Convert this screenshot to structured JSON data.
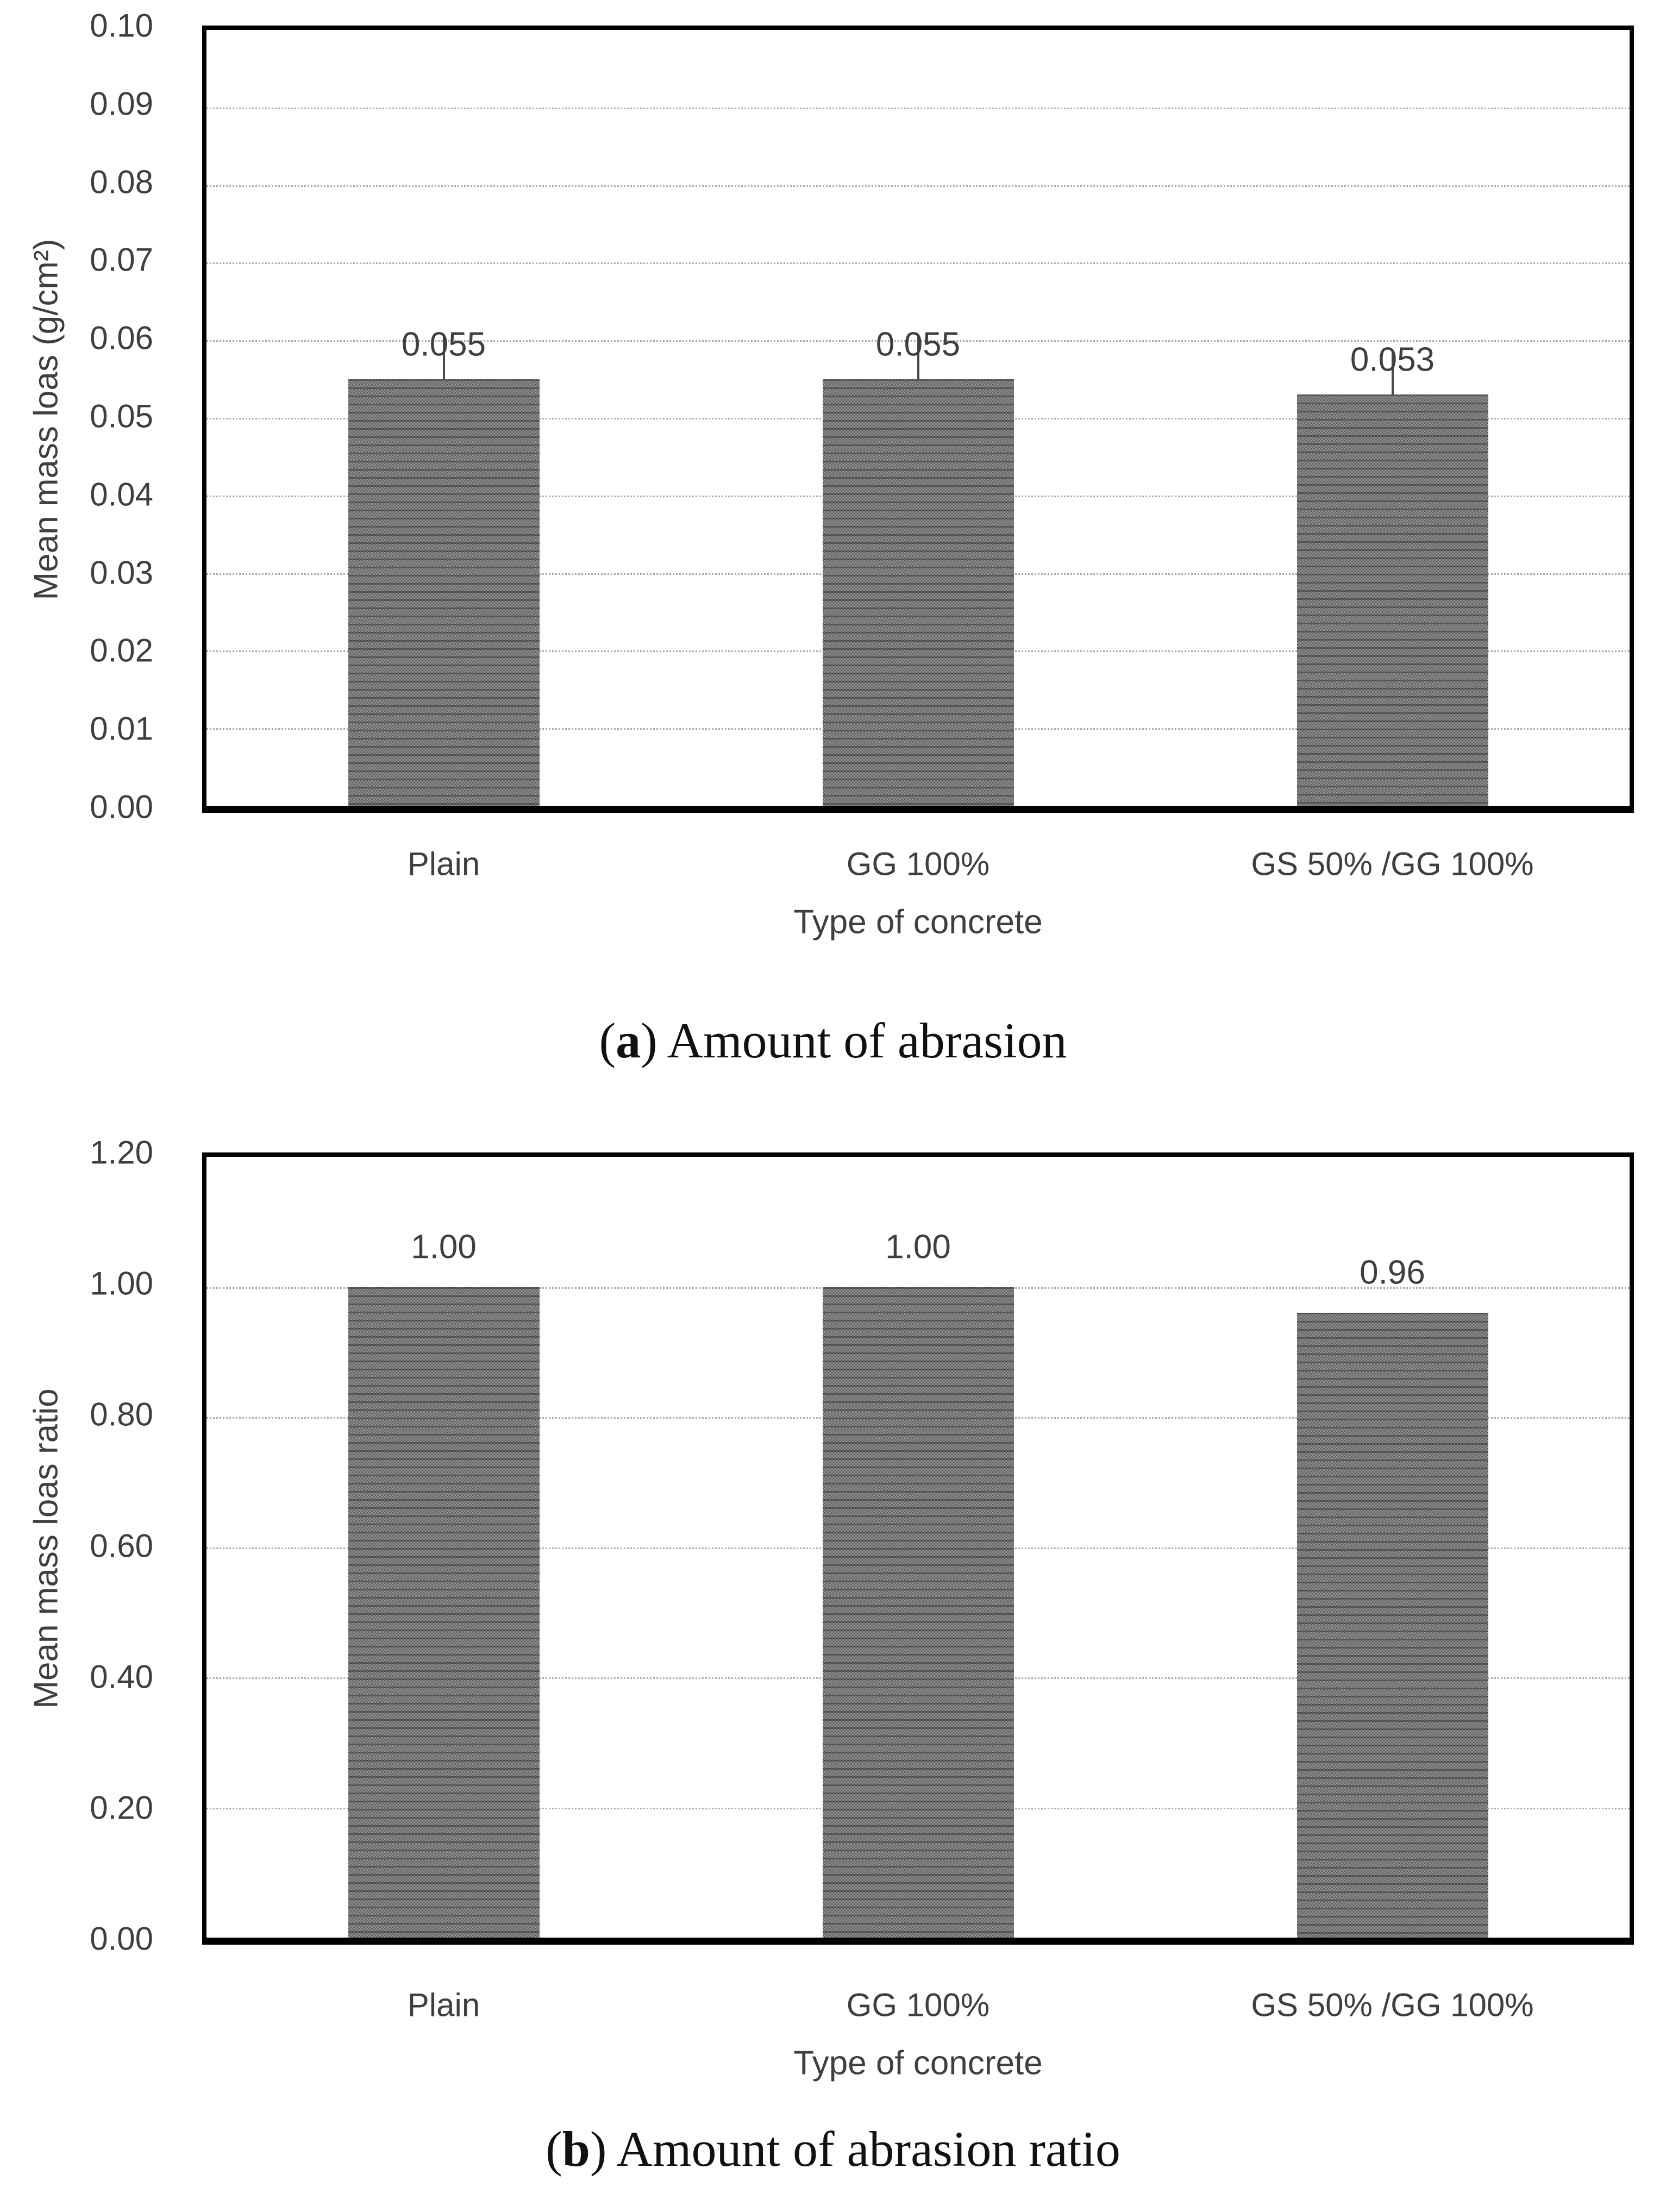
{
  "figure": {
    "background": "#ffffff",
    "text_color": "#3f3f3f",
    "caption_color": "#111111",
    "bar_fill": "dithered-gray",
    "bar_base_color": "#7b7b7b",
    "grid_color": "#ababab",
    "axis_color": "#000000"
  },
  "chart_data": [
    {
      "type": "bar",
      "panel": "a",
      "caption": "(a) Amount of abrasion",
      "categories": [
        "Plain",
        "GG 100%",
        "GS 50% /GG 100%"
      ],
      "values": [
        0.055,
        0.055,
        0.053
      ],
      "data_labels": [
        "0.055",
        "0.055",
        "0.053"
      ],
      "has_error_bars": true,
      "error_bar_up": [
        0.0055,
        0.0055,
        0.0055
      ],
      "xlabel": "Type of concrete",
      "ylabel": "Mean mass loas (g/cm²)",
      "ylim": [
        0,
        0.1
      ],
      "ytick_labels": [
        "0.10",
        "0.09",
        "0.08",
        "0.07",
        "0.06",
        "0.05",
        "0.04",
        "0.03",
        "0.02",
        "0.01",
        "0.00"
      ],
      "grid": "horizontal-dotted",
      "legend": "none"
    },
    {
      "type": "bar",
      "panel": "b",
      "caption": "(b) Amount of abrasion ratio",
      "categories": [
        "Plain",
        "GG 100%",
        "GS 50% /GG 100%"
      ],
      "values": [
        1.0,
        1.0,
        0.96
      ],
      "data_labels": [
        "1.00",
        "1.00",
        "0.96"
      ],
      "has_error_bars": false,
      "xlabel": "Type of concrete",
      "ylabel": "Mean mass loas ratio",
      "ylim": [
        0,
        1.2
      ],
      "ytick_labels": [
        "1.20",
        "1.00",
        "0.80",
        "0.60",
        "0.40",
        "0.20",
        "0.00"
      ],
      "grid": "horizontal-dotted",
      "legend": "none"
    }
  ],
  "captions": {
    "a": {
      "open": "(",
      "letter": "a",
      "rest": ") Amount of abrasion"
    },
    "b": {
      "open": "(",
      "letter": "b",
      "rest": ") Amount of abrasion ratio"
    }
  }
}
